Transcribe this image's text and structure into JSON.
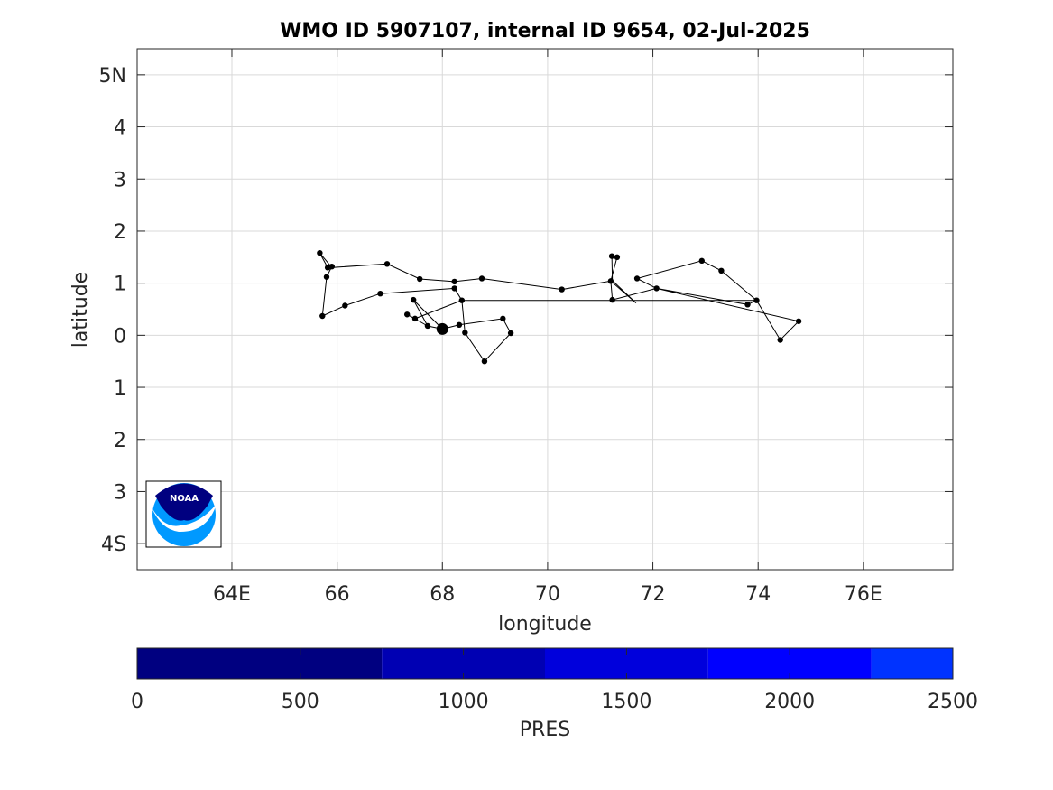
{
  "chart_data": {
    "type": "scatter",
    "title": "WMO ID 5907107, internal ID 9654, 02-Jul-2025",
    "xlabel": "longitude",
    "ylabel": "latitude",
    "xlim": [
      62.2,
      77.7
    ],
    "ylim": [
      -4.5,
      5.5
    ],
    "grid": true,
    "x_ticks": [
      {
        "v": 64,
        "label": "64E"
      },
      {
        "v": 66,
        "label": "66"
      },
      {
        "v": 68,
        "label": "68"
      },
      {
        "v": 70,
        "label": "70"
      },
      {
        "v": 72,
        "label": "72"
      },
      {
        "v": 74,
        "label": "74"
      },
      {
        "v": 76,
        "label": "76E"
      }
    ],
    "y_ticks": [
      {
        "v": 5,
        "label": "5N"
      },
      {
        "v": 4,
        "label": "4"
      },
      {
        "v": 3,
        "label": "3"
      },
      {
        "v": 2,
        "label": "2"
      },
      {
        "v": 1,
        "label": "1"
      },
      {
        "v": 0,
        "label": "0"
      },
      {
        "v": -1,
        "label": "1"
      },
      {
        "v": -2,
        "label": "2"
      },
      {
        "v": -3,
        "label": "3"
      },
      {
        "v": -4,
        "label": "4S"
      }
    ],
    "trajectory": [
      [
        68.0,
        0.12
      ],
      [
        67.72,
        0.18
      ],
      [
        67.45,
        0.68
      ],
      [
        68.0,
        0.12
      ],
      [
        68.32,
        0.2
      ],
      [
        69.15,
        0.32
      ],
      [
        69.3,
        0.04
      ],
      [
        68.8,
        -0.5
      ],
      [
        68.43,
        0.05
      ],
      [
        68.37,
        0.67
      ],
      [
        68.23,
        0.9
      ],
      [
        66.82,
        0.8
      ],
      [
        66.15,
        0.57
      ],
      [
        65.72,
        0.37
      ],
      [
        65.8,
        1.12
      ],
      [
        65.9,
        1.32
      ],
      [
        65.82,
        1.3
      ],
      [
        65.67,
        1.58
      ],
      [
        65.9,
        1.3
      ],
      [
        66.95,
        1.37
      ],
      [
        67.57,
        1.08
      ],
      [
        68.23,
        1.03
      ],
      [
        68.75,
        1.09
      ],
      [
        70.27,
        0.88
      ],
      [
        71.2,
        1.04
      ],
      [
        71.68,
        0.62
      ],
      [
        71.23,
        1.05
      ],
      [
        71.22,
        1.52
      ],
      [
        71.32,
        1.5
      ],
      [
        71.2,
        1.04
      ],
      [
        71.23,
        0.68
      ],
      [
        72.07,
        0.9
      ],
      [
        73.8,
        0.59
      ],
      [
        73.97,
        0.67
      ],
      [
        74.42,
        -0.09
      ],
      [
        74.77,
        0.27
      ],
      [
        72.07,
        0.9
      ],
      [
        71.7,
        1.09
      ],
      [
        72.93,
        1.43
      ],
      [
        73.3,
        1.24
      ],
      [
        73.97,
        0.67
      ],
      [
        68.37,
        0.67
      ],
      [
        67.48,
        0.32
      ],
      [
        67.33,
        0.4
      ],
      [
        67.72,
        0.18
      ]
    ],
    "points": [
      [
        68.0,
        0.12
      ],
      [
        67.72,
        0.18
      ],
      [
        67.45,
        0.68
      ],
      [
        67.48,
        0.32
      ],
      [
        67.33,
        0.4
      ],
      [
        68.32,
        0.2
      ],
      [
        69.15,
        0.32
      ],
      [
        69.3,
        0.04
      ],
      [
        68.8,
        -0.5
      ],
      [
        68.43,
        0.05
      ],
      [
        68.37,
        0.67
      ],
      [
        68.23,
        0.9
      ],
      [
        66.82,
        0.8
      ],
      [
        66.15,
        0.57
      ],
      [
        65.72,
        0.37
      ],
      [
        65.8,
        1.12
      ],
      [
        65.9,
        1.32
      ],
      [
        65.82,
        1.3
      ],
      [
        65.67,
        1.58
      ],
      [
        66.95,
        1.37
      ],
      [
        67.57,
        1.08
      ],
      [
        68.23,
        1.03
      ],
      [
        68.75,
        1.09
      ],
      [
        70.27,
        0.88
      ],
      [
        71.2,
        1.04
      ],
      [
        71.23,
        0.68
      ],
      [
        71.22,
        1.52
      ],
      [
        71.32,
        1.5
      ],
      [
        72.07,
        0.9
      ],
      [
        71.7,
        1.09
      ],
      [
        72.93,
        1.43
      ],
      [
        73.3,
        1.24
      ],
      [
        73.8,
        0.59
      ],
      [
        73.97,
        0.67
      ],
      [
        74.42,
        -0.09
      ],
      [
        74.77,
        0.27
      ]
    ],
    "start_point": [
      68.0,
      0.12
    ],
    "colorbar": {
      "label": "PRES",
      "range": [
        0,
        2500
      ],
      "tick_values": [
        0,
        500,
        1000,
        1500,
        2000,
        2500
      ],
      "segments": [
        {
          "from": 0,
          "to": 750,
          "color": "#000080"
        },
        {
          "from": 750,
          "to": 1250,
          "color": "#0000b3"
        },
        {
          "from": 1250,
          "to": 1750,
          "color": "#0000dc"
        },
        {
          "from": 1750,
          "to": 2250,
          "color": "#0000ff"
        },
        {
          "from": 2250,
          "to": 2500,
          "color": "#0033ff"
        }
      ]
    },
    "logo": {
      "text": "NOAA",
      "colors": {
        "dark": "#000080",
        "light": "#0099ff"
      }
    }
  }
}
